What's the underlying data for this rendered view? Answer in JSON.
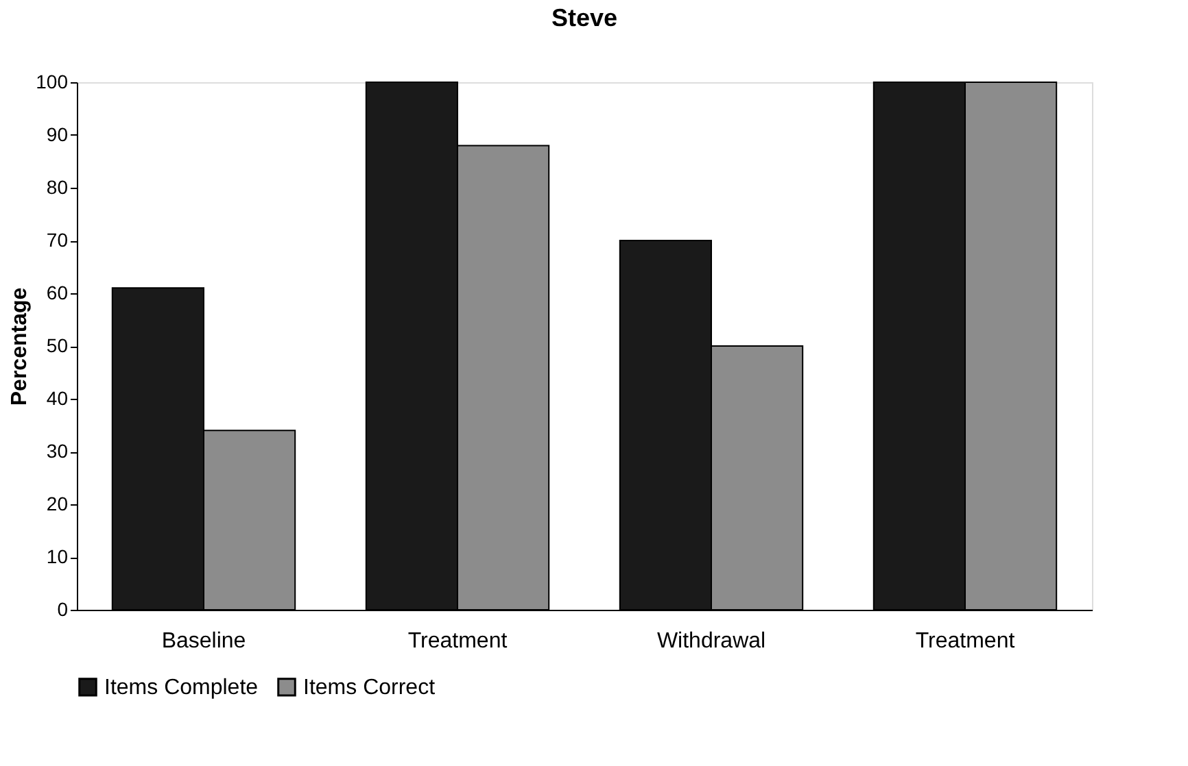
{
  "chart_data": {
    "type": "bar",
    "title": "Steve",
    "ylabel": "Percentage",
    "categories": [
      "Baseline",
      "Treatment",
      "Withdrawal",
      "Treatment"
    ],
    "series": [
      {
        "name": "Items Complete",
        "color": "#1a1a1a",
        "values": [
          61,
          100,
          70,
          100
        ]
      },
      {
        "name": "Items Correct",
        "color": "#8c8c8c",
        "values": [
          34,
          88,
          50,
          100
        ]
      }
    ],
    "ylim": [
      0,
      100
    ],
    "yticks": [
      0,
      10,
      20,
      30,
      40,
      50,
      60,
      70,
      80,
      90,
      100
    ],
    "grid": false,
    "legend": "bottom"
  }
}
